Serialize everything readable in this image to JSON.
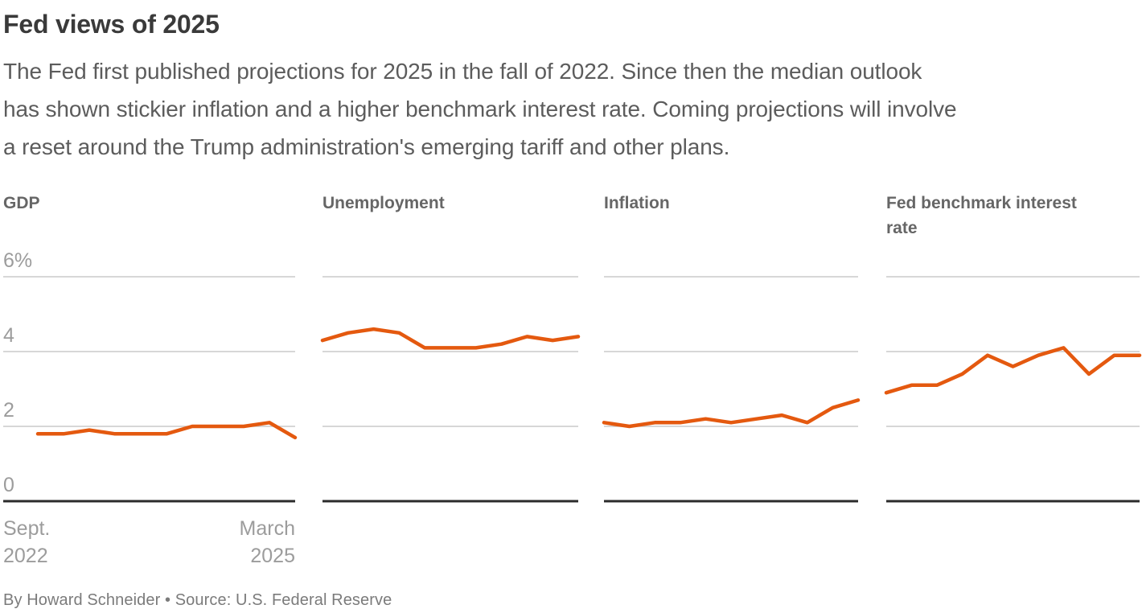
{
  "header": {
    "title": "Fed views of 2025",
    "subtitle_lines": [
      "The Fed first published projections for 2025 in the fall of 2022. Since then the median outlook",
      "has shown stickier inflation and a higher benchmark interest rate. Coming projections will involve",
      "a reset around the Trump administration's emerging tariff and other plans."
    ]
  },
  "colors": {
    "line": "#e4590f",
    "grid": "#cacaca",
    "axis": "#2b2b2b",
    "title_text": "#3a3a3a",
    "panel_title_text": "#666666",
    "tick_text": "#9c9c9c"
  },
  "axis": {
    "y_ticks": [
      {
        "label": "6%",
        "value": 6
      },
      {
        "label": "4",
        "value": 4
      },
      {
        "label": "2",
        "value": 2
      },
      {
        "label": "0",
        "value": 0
      }
    ],
    "x_start_lines": [
      "Sept.",
      "2022"
    ],
    "x_end_lines": [
      "March",
      "2025"
    ]
  },
  "chart_data": [
    {
      "type": "line",
      "title": "GDP",
      "x": [
        "Sept. 2022",
        "Dec. 2022",
        "March 2023",
        "June 2023",
        "Sept. 2023",
        "Dec. 2023",
        "March 2024",
        "June 2024",
        "Sept. 2024",
        "Dec. 2024",
        "March 2025"
      ],
      "values": [
        1.8,
        1.8,
        1.9,
        1.8,
        1.8,
        1.8,
        2.0,
        2.0,
        2.0,
        2.1,
        1.7
      ],
      "unit": "%",
      "ylim": [
        0,
        6
      ],
      "yticks": [
        0,
        2,
        4,
        6
      ],
      "grid": true,
      "legend": "none"
    },
    {
      "type": "line",
      "title": "Unemployment",
      "x": [
        "Sept. 2022",
        "Dec. 2022",
        "March 2023",
        "June 2023",
        "Sept. 2023",
        "Dec. 2023",
        "March 2024",
        "June 2024",
        "Sept. 2024",
        "Dec. 2024",
        "March 2025"
      ],
      "values": [
        4.3,
        4.5,
        4.6,
        4.5,
        4.1,
        4.1,
        4.1,
        4.2,
        4.4,
        4.3,
        4.4
      ],
      "unit": "%",
      "ylim": [
        0,
        6
      ],
      "yticks": [
        0,
        2,
        4,
        6
      ],
      "grid": true,
      "legend": "none"
    },
    {
      "type": "line",
      "title": "Inflation",
      "x": [
        "Sept. 2022",
        "Dec. 2022",
        "March 2023",
        "June 2023",
        "Sept. 2023",
        "Dec. 2023",
        "March 2024",
        "June 2024",
        "Sept. 2024",
        "Dec. 2024",
        "March 2025"
      ],
      "values": [
        2.1,
        2.0,
        2.1,
        2.1,
        2.2,
        2.1,
        2.2,
        2.3,
        2.1,
        2.5,
        2.7
      ],
      "unit": "%",
      "ylim": [
        0,
        6
      ],
      "yticks": [
        0,
        2,
        4,
        6
      ],
      "grid": true,
      "legend": "none"
    },
    {
      "type": "line",
      "title": "Fed benchmark interest rate",
      "x": [
        "Sept. 2022",
        "Dec. 2022",
        "March 2023",
        "June 2023",
        "Sept. 2023",
        "Dec. 2023",
        "March 2024",
        "June 2024",
        "Sept. 2024",
        "Dec. 2024",
        "March 2025"
      ],
      "values": [
        2.9,
        3.1,
        3.1,
        3.4,
        3.9,
        3.6,
        3.9,
        4.1,
        3.4,
        3.9,
        3.9
      ],
      "unit": "%",
      "ylim": [
        0,
        6
      ],
      "yticks": [
        0,
        2,
        4,
        6
      ],
      "grid": true,
      "legend": "none"
    }
  ],
  "footer": {
    "byline": "By Howard Schneider • Source: U.S. Federal Reserve"
  }
}
